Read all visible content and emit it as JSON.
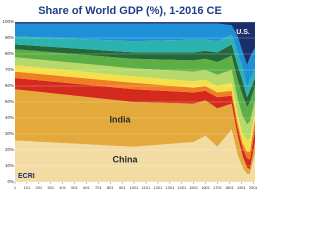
{
  "chart_data": {
    "type": "stacked-area",
    "title": "Share of World GDP (%), 1-2016 CE",
    "logo": "ECRI",
    "x": [
      1,
      1000,
      1500,
      1600,
      1700,
      1820,
      1870,
      1913,
      1950,
      1973,
      2016
    ],
    "xlim": [
      1,
      2016
    ],
    "xticks": [
      1,
      101,
      201,
      301,
      401,
      501,
      601,
      701,
      801,
      901,
      1001,
      1101,
      1201,
      1301,
      1401,
      1501,
      1601,
      1701,
      1801,
      1901,
      2001
    ],
    "ylim": [
      0,
      100
    ],
    "yticks": [
      {
        "value": 0,
        "label": "0%"
      },
      {
        "value": 10,
        "label": "10%"
      },
      {
        "value": 20,
        "label": "20%"
      },
      {
        "value": 30,
        "label": "30%"
      },
      {
        "value": 40,
        "label": "40%"
      },
      {
        "value": 50,
        "label": "50%"
      },
      {
        "value": 60,
        "label": "60%"
      },
      {
        "value": 70,
        "label": "70%"
      },
      {
        "value": 80,
        "label": "80%"
      },
      {
        "value": 90,
        "label": "90%"
      },
      {
        "value": 100,
        "label": "100%"
      }
    ],
    "grid": true,
    "series": [
      {
        "name": "China",
        "color": "#f3dca4",
        "values": [
          26,
          22,
          25,
          29,
          22,
          33,
          17,
          9,
          5,
          5,
          18
        ]
      },
      {
        "name": "India",
        "color": "#e3a93a",
        "values": [
          32,
          28,
          24,
          22,
          24,
          16,
          12,
          7,
          4,
          3,
          7
        ]
      },
      {
        "color": "#d42a1e",
        "values": [
          7,
          8,
          7,
          6,
          7,
          5,
          5,
          5,
          6,
          6,
          8
        ]
      },
      {
        "color": "#f07f22",
        "values": [
          4,
          4,
          3,
          3,
          3,
          3,
          3,
          3,
          4,
          5,
          6
        ]
      },
      {
        "color": "#f6e04a",
        "values": [
          4,
          4,
          4,
          4,
          4,
          5,
          5,
          6,
          7,
          8,
          5
        ]
      },
      {
        "color": "#b6d96a",
        "values": [
          5,
          5,
          6,
          6,
          7,
          8,
          10,
          11,
          10,
          11,
          7
        ]
      },
      {
        "color": "#5cae45",
        "values": [
          5,
          6,
          7,
          7,
          8,
          9,
          12,
          13,
          11,
          12,
          9
        ]
      },
      {
        "color": "#24683a",
        "values": [
          3,
          4,
          5,
          5,
          6,
          7,
          9,
          9,
          6,
          7,
          5
        ]
      },
      {
        "color": "#2bb3b0",
        "values": [
          5,
          7,
          8,
          7,
          7,
          6,
          8,
          8,
          6,
          7,
          6
        ]
      },
      {
        "color": "#1e90d8",
        "values": [
          8,
          11,
          10,
          10,
          11,
          6,
          10,
          10,
          14,
          14,
          13
        ]
      },
      {
        "name": "U.S.",
        "color": "#1b2f6b",
        "values": [
          1,
          1,
          1,
          1,
          1,
          2,
          9,
          19,
          27,
          22,
          16
        ]
      }
    ]
  }
}
